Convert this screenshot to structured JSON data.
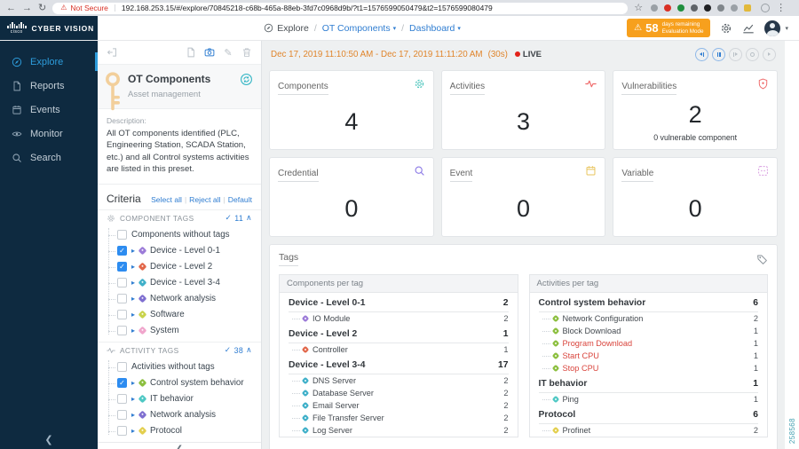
{
  "browser": {
    "security": "Not Secure",
    "url": "192.168.253.15/#/explore/70845218-c68b-465a-88eb-3fd7c0968d9b/?t1=1576599050479&t2=1576599080479"
  },
  "header": {
    "logo_text": "cisco",
    "brand": "CYBER VISION",
    "breadcrumb": {
      "root": "Explore",
      "preset": "OT Components",
      "view": "Dashboard"
    },
    "evaluation": {
      "days": "58",
      "line1": "days remaining",
      "line2": "Evaluation Mode"
    }
  },
  "sidebar": {
    "items": [
      {
        "label": "Explore",
        "icon": "compass",
        "active": true
      },
      {
        "label": "Reports",
        "icon": "report",
        "active": false
      },
      {
        "label": "Events",
        "icon": "calendar",
        "active": false
      },
      {
        "label": "Monitor",
        "icon": "eye",
        "active": false
      },
      {
        "label": "Search",
        "icon": "search",
        "active": false
      }
    ]
  },
  "preset": {
    "title": "OT Components",
    "subtitle": "Asset management",
    "description_label": "Description:",
    "description": "All OT components identified (PLC, Engineering Station, SCADA Station, etc.) and all Control systems activities are listed in this preset.",
    "criteria": {
      "title": "Criteria",
      "actions": [
        "Select all",
        "Reject all",
        "Default"
      ]
    },
    "component_tags": {
      "title": "COMPONENT TAGS",
      "count": "11",
      "items": [
        {
          "label": "Components without tags",
          "checked": false
        },
        {
          "label": "Device - Level 0-1",
          "checked": true,
          "color": "#9c7bd8"
        },
        {
          "label": "Device - Level 2",
          "checked": true,
          "color": "#e2674a"
        },
        {
          "label": "Device - Level 3-4",
          "checked": false,
          "color": "#3fb0c9"
        },
        {
          "label": "Network analysis",
          "checked": false,
          "color": "#7f6fd0"
        },
        {
          "label": "Software",
          "checked": false,
          "color": "#c9d34b"
        },
        {
          "label": "System",
          "checked": false,
          "color": "#f0a5cc"
        }
      ]
    },
    "activity_tags": {
      "title": "ACTIVITY TAGS",
      "count": "38",
      "items": [
        {
          "label": "Activities without tags",
          "checked": false
        },
        {
          "label": "Control system behavior",
          "checked": true,
          "color": "#8cbf3f"
        },
        {
          "label": "IT behavior",
          "checked": false,
          "color": "#4fc8c4"
        },
        {
          "label": "Network analysis",
          "checked": false,
          "color": "#7f6fd0"
        },
        {
          "label": "Protocol",
          "checked": false,
          "color": "#e3cf4e"
        }
      ]
    }
  },
  "timebar": {
    "range": "Dec 17, 2019 11:10:50 AM - Dec 17, 2019 11:11:20 AM",
    "duration": "(30s)",
    "live_label": "LIVE"
  },
  "cards": [
    {
      "title": "Components",
      "value": "4",
      "icon": "gear",
      "color": "#4fc6be"
    },
    {
      "title": "Activities",
      "value": "3",
      "icon": "pulse",
      "color": "#ef6a6a"
    },
    {
      "title": "Vulnerabilities",
      "value": "2",
      "icon": "shield",
      "color": "#ef6a6a",
      "subtext": "0 vulnerable component"
    },
    {
      "title": "Credential",
      "value": "0",
      "icon": "magnifier",
      "color": "#8c7ae6"
    },
    {
      "title": "Event",
      "value": "0",
      "icon": "calendar",
      "color": "#e8c35a"
    },
    {
      "title": "Variable",
      "value": "0",
      "icon": "variable",
      "color": "#d79ae0"
    }
  ],
  "tags_section": {
    "title": "Tags",
    "components_per_tag": {
      "title": "Components per tag",
      "groups": [
        {
          "label": "Device - Level 0-1",
          "count": "2",
          "children": [
            {
              "label": "IO Module",
              "count": "2",
              "color": "#9c7bd8"
            }
          ]
        },
        {
          "label": "Device - Level 2",
          "count": "1",
          "children": [
            {
              "label": "Controller",
              "count": "1",
              "color": "#e2674a"
            }
          ]
        },
        {
          "label": "Device - Level 3-4",
          "count": "17",
          "children": [
            {
              "label": "DNS Server",
              "count": "2",
              "color": "#3fb0c9"
            },
            {
              "label": "Database Server",
              "count": "2",
              "color": "#3fb0c9"
            },
            {
              "label": "Email Server",
              "count": "2",
              "color": "#3fb0c9"
            },
            {
              "label": "File Transfer Server",
              "count": "2",
              "color": "#3fb0c9"
            },
            {
              "label": "Log Server",
              "count": "2",
              "color": "#3fb0c9"
            }
          ]
        }
      ]
    },
    "activities_per_tag": {
      "title": "Activities per tag",
      "groups": [
        {
          "label": "Control system behavior",
          "count": "6",
          "children": [
            {
              "label": "Network Configuration",
              "count": "2",
              "color": "#8cbf3f"
            },
            {
              "label": "Block Download",
              "count": "1",
              "color": "#8cbf3f"
            },
            {
              "label": "Program Download",
              "count": "1",
              "color": "#8cbf3f",
              "alert": true
            },
            {
              "label": "Start CPU",
              "count": "1",
              "color": "#8cbf3f",
              "alert": true
            },
            {
              "label": "Stop CPU",
              "count": "1",
              "color": "#8cbf3f",
              "alert": true
            }
          ]
        },
        {
          "label": "IT behavior",
          "count": "1",
          "children": [
            {
              "label": "Ping",
              "count": "1",
              "color": "#4fc8c4"
            }
          ]
        },
        {
          "label": "Protocol",
          "count": "6",
          "children": [
            {
              "label": "Profinet",
              "count": "2",
              "color": "#e3cf4e"
            }
          ]
        }
      ]
    }
  },
  "figure_number": "258568"
}
